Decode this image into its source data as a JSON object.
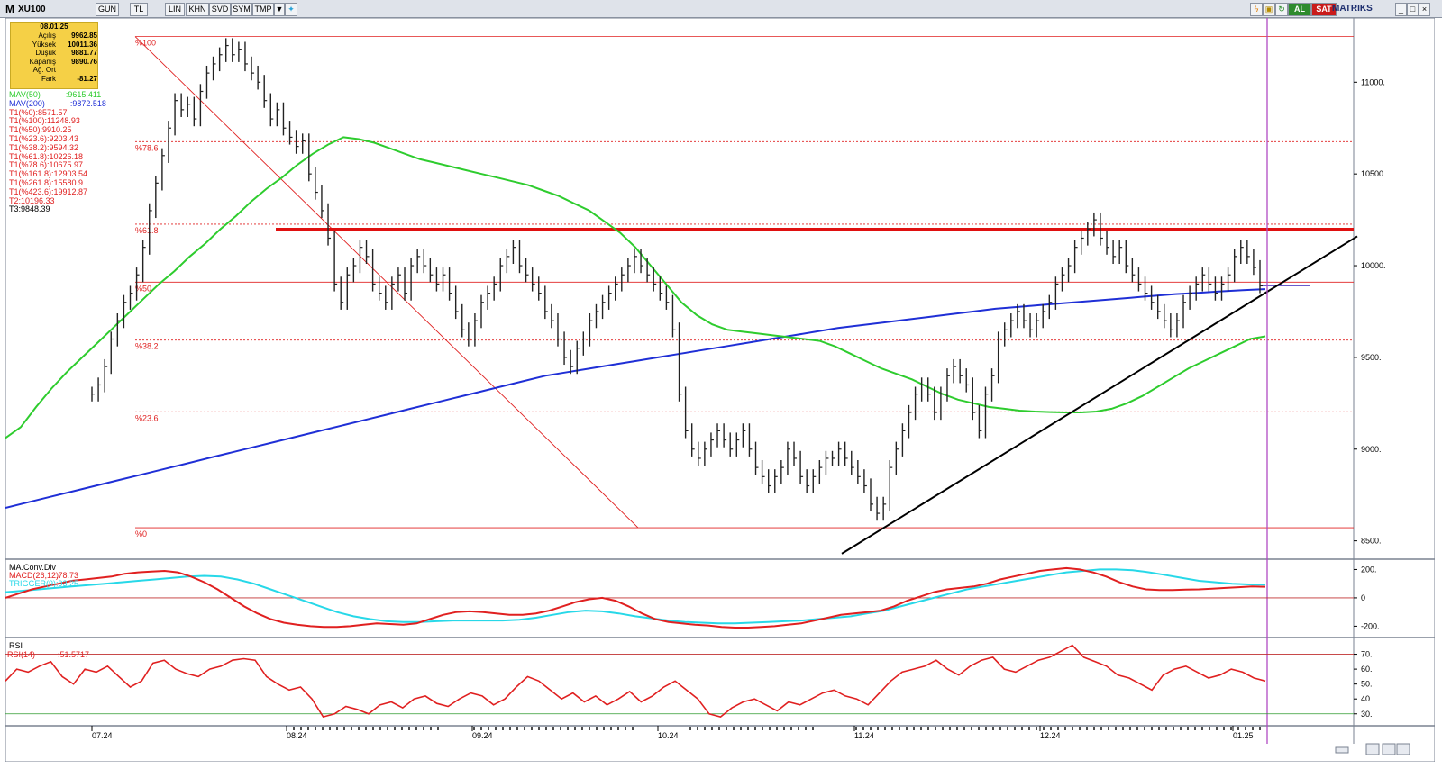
{
  "toolbar": {
    "logo": "M",
    "symbol": "XU100",
    "buttons": [
      "GUN",
      "TL",
      "LIN",
      "KHN",
      "SVD",
      "SYM",
      "TMP"
    ],
    "al_label": "AL",
    "sat_label": "SAT",
    "brand": "MATRIKS"
  },
  "info_box": {
    "date": "08.01.25",
    "rows": [
      {
        "label": "Açılış",
        "value": "9962.85"
      },
      {
        "label": "Yüksek",
        "value": "10011.36"
      },
      {
        "label": "Düşük",
        "value": "9881.77"
      },
      {
        "label": "Kapanış",
        "value": "9890.76"
      },
      {
        "label": "Ağ. Ort",
        "value": ""
      },
      {
        "label": "Fark",
        "value": "-81.27"
      }
    ]
  },
  "legend": [
    {
      "text": "MAV(50)",
      "value": ":9615.411",
      "color": "#2ecc2e"
    },
    {
      "text": "MAV(200)",
      "value": ":9872.518",
      "color": "#1f2fd6"
    },
    {
      "text": "T1(%0):8571.57",
      "value": "",
      "color": "#e02020"
    },
    {
      "text": "T1(%100):11248.93",
      "value": "",
      "color": "#e02020"
    },
    {
      "text": "T1(%50):9910.25",
      "value": "",
      "color": "#e02020"
    },
    {
      "text": "T1(%23.6):9203.43",
      "value": "",
      "color": "#e02020"
    },
    {
      "text": "T1(%38.2):9594.32",
      "value": "",
      "color": "#e02020"
    },
    {
      "text": "T1(%61.8):10226.18",
      "value": "",
      "color": "#e02020"
    },
    {
      "text": "T1(%78.6):10675.97",
      "value": "",
      "color": "#e02020"
    },
    {
      "text": "T1(%161.8):12903.54",
      "value": "",
      "color": "#e02020"
    },
    {
      "text": "T1(%261.8):15580.9",
      "value": "",
      "color": "#e02020"
    },
    {
      "text": "T1(%423.6):19912.87",
      "value": "",
      "color": "#e02020"
    },
    {
      "text": "T2:10196.33",
      "value": "",
      "color": "#e02020"
    },
    {
      "text": "T3:9848.39",
      "value": "",
      "color": "#000000"
    }
  ],
  "chart_data": [
    {
      "type": "ohlc",
      "x_labels": [
        "07.24",
        "08.24",
        "09.24",
        "10.24",
        "11.24",
        "12.24",
        "01.25"
      ],
      "ylim": [
        8400,
        11350
      ],
      "yticks": [
        8500,
        9000,
        9500,
        10000,
        10500,
        11000
      ],
      "ytick_labels": [
        "8500.",
        "9000.",
        "9500.",
        "10000.",
        "10500.",
        "11000."
      ],
      "fib_levels": [
        {
          "label": "%100",
          "value": 11248.93
        },
        {
          "label": "%78.6",
          "value": 10675.97
        },
        {
          "label": "%61.8",
          "value": 10226.18
        },
        {
          "label": "%50",
          "value": 9910.25
        },
        {
          "label": "%38.2",
          "value": 9594.32
        },
        {
          "label": "%23.6",
          "value": 9203.43
        },
        {
          "label": "%0",
          "value": 8571.57
        }
      ],
      "resistance_level": 10196.33,
      "support_level": 9890,
      "close_series": [
        9300,
        9350,
        9450,
        9600,
        9700,
        9800,
        9850,
        9950,
        10100,
        10300,
        10450,
        10600,
        10750,
        10900,
        10850,
        10880,
        10800,
        10950,
        11050,
        11100,
        11150,
        11200,
        11150,
        11180,
        11100,
        11050,
        11000,
        10900,
        10800,
        10850,
        10750,
        10700,
        10650,
        10680,
        10500,
        10400,
        10300,
        10150,
        9900,
        9800,
        9950,
        10000,
        10100,
        10050,
        9900,
        9850,
        9800,
        9900,
        9950,
        9850,
        10000,
        10050,
        10000,
        9950,
        9900,
        9950,
        9850,
        9750,
        9650,
        9600,
        9700,
        9800,
        9850,
        9900,
        10000,
        10050,
        10100,
        10000,
        9950,
        9900,
        9850,
        9750,
        9700,
        9600,
        9500,
        9450,
        9550,
        9600,
        9700,
        9750,
        9800,
        9850,
        9900,
        9950,
        10000,
        10050,
        10000,
        9950,
        9900,
        9850,
        9800,
        9650,
        9300,
        9100,
        9000,
        8950,
        9000,
        9050,
        9100,
        9050,
        9000,
        9050,
        9100,
        9000,
        8900,
        8850,
        8800,
        8850,
        8900,
        9000,
        8950,
        8850,
        8800,
        8850,
        8900,
        8950,
        8950,
        9000,
        8950,
        8900,
        8850,
        8800,
        8700,
        8650,
        8700,
        8900,
        9000,
        9100,
        9200,
        9300,
        9350,
        9300,
        9200,
        9300,
        9400,
        9450,
        9400,
        9350,
        9200,
        9100,
        9300,
        9400,
        9600,
        9650,
        9700,
        9750,
        9700,
        9650,
        9700,
        9750,
        9800,
        9900,
        9950,
        10000,
        10100,
        10150,
        10200,
        10250,
        10150,
        10100,
        10050,
        10100,
        10000,
        9950,
        9900,
        9850,
        9800,
        9750,
        9700,
        9650,
        9700,
        9800,
        9850,
        9900,
        9950,
        9900,
        9850,
        9900,
        9950,
        10050,
        10100,
        10050,
        9990,
        9890
      ],
      "mav50": [
        9060,
        9120,
        9230,
        9330,
        9420,
        9500,
        9580,
        9660,
        9740,
        9820,
        9900,
        9970,
        10050,
        10120,
        10200,
        10270,
        10350,
        10420,
        10480,
        10550,
        10610,
        10660,
        10700,
        10690,
        10670,
        10640,
        10610,
        10580,
        10560,
        10540,
        10520,
        10500,
        10480,
        10460,
        10440,
        10410,
        10380,
        10340,
        10300,
        10240,
        10180,
        10100,
        10000,
        9900,
        9800,
        9730,
        9680,
        9650,
        9640,
        9630,
        9620,
        9610,
        9600,
        9590,
        9560,
        9520,
        9480,
        9440,
        9410,
        9380,
        9340,
        9300,
        9270,
        9250,
        9230,
        9220,
        9210,
        9205,
        9202,
        9200,
        9200,
        9205,
        9220,
        9250,
        9290,
        9340,
        9390,
        9440,
        9480,
        9520,
        9560,
        9600,
        9615
      ],
      "mav200": [
        8680,
        8710,
        8740,
        8770,
        8800,
        8830,
        8860,
        8890,
        8920,
        8950,
        8980,
        9010,
        9040,
        9070,
        9100,
        9130,
        9160,
        9190,
        9220,
        9250,
        9280,
        9310,
        9340,
        9370,
        9400,
        9420,
        9440,
        9460,
        9480,
        9500,
        9520,
        9540,
        9560,
        9580,
        9600,
        9620,
        9640,
        9660,
        9675,
        9690,
        9705,
        9720,
        9735,
        9750,
        9765,
        9775,
        9785,
        9795,
        9805,
        9815,
        9825,
        9835,
        9845,
        9852,
        9860,
        9866,
        9872
      ],
      "trendline": {
        "start": [
          8430,
          "11.24"
        ],
        "end": [
          10160,
          "01.25"
        ]
      }
    },
    {
      "type": "line",
      "title": "MA.Conv.Div",
      "series": [
        {
          "name": "MACD(26,12)",
          "value_label": ":78.73",
          "color": "#e02020",
          "values": [
            0,
            30,
            60,
            80,
            100,
            120,
            130,
            140,
            150,
            170,
            180,
            185,
            190,
            180,
            150,
            110,
            60,
            0,
            -60,
            -110,
            -150,
            -175,
            -190,
            -200,
            -205,
            -205,
            -200,
            -190,
            -180,
            -185,
            -190,
            -180,
            -150,
            -120,
            -100,
            -95,
            -100,
            -110,
            -120,
            -120,
            -110,
            -90,
            -60,
            -30,
            -10,
            0,
            -20,
            -60,
            -110,
            -150,
            -170,
            -180,
            -190,
            -195,
            -205,
            -210,
            -210,
            -205,
            -200,
            -190,
            -180,
            -160,
            -140,
            -120,
            -110,
            -100,
            -90,
            -60,
            -20,
            10,
            40,
            60,
            70,
            80,
            100,
            130,
            150,
            170,
            190,
            200,
            210,
            200,
            180,
            150,
            110,
            80,
            60,
            55,
            55,
            58,
            60,
            65,
            70,
            75,
            80,
            78
          ]
        },
        {
          "name": "TRIGGER(9)",
          "value_label": ":93.25",
          "color": "#27d8e8",
          "values": [
            40,
            50,
            60,
            70,
            80,
            90,
            100,
            110,
            120,
            130,
            140,
            150,
            155,
            150,
            130,
            100,
            60,
            20,
            -20,
            -60,
            -100,
            -130,
            -150,
            -165,
            -170,
            -170,
            -165,
            -160,
            -160,
            -160,
            -160,
            -155,
            -140,
            -120,
            -100,
            -90,
            -95,
            -110,
            -130,
            -145,
            -160,
            -170,
            -175,
            -180,
            -180,
            -175,
            -170,
            -165,
            -160,
            -150,
            -140,
            -130,
            -110,
            -90,
            -60,
            -30,
            0,
            30,
            60,
            80,
            100,
            120,
            140,
            160,
            180,
            190,
            200,
            200,
            195,
            180,
            160,
            140,
            120,
            110,
            100,
            95,
            93
          ]
        }
      ],
      "ylim": [
        -280,
        260
      ],
      "yticks": [
        200,
        0,
        -200
      ],
      "ytick_labels": [
        "200.",
        "0",
        "-200."
      ]
    },
    {
      "type": "line",
      "title": "RSI",
      "series": [
        {
          "name": "RSI(14)",
          "value_label": ":51.5717",
          "color": "#e02020",
          "values": [
            52,
            60,
            58,
            62,
            65,
            55,
            50,
            60,
            58,
            62,
            55,
            48,
            52,
            64,
            66,
            60,
            57,
            55,
            60,
            62,
            66,
            67,
            66,
            55,
            50,
            46,
            48,
            40,
            28,
            30,
            35,
            33,
            30,
            36,
            38,
            34,
            40,
            42,
            37,
            35,
            40,
            44,
            42,
            36,
            40,
            48,
            55,
            52,
            46,
            40,
            44,
            38,
            42,
            36,
            40,
            45,
            38,
            42,
            48,
            52,
            46,
            40,
            30,
            28,
            34,
            38,
            40,
            36,
            32,
            38,
            36,
            40,
            44,
            46,
            42,
            40,
            36,
            44,
            52,
            58,
            60,
            62,
            66,
            60,
            56,
            62,
            66,
            68,
            60,
            58,
            62,
            66,
            68,
            72,
            76,
            68,
            65,
            62,
            56,
            54,
            50,
            46,
            56,
            60,
            62,
            58,
            54,
            56,
            60,
            58,
            54,
            52
          ]
        }
      ],
      "ylim": [
        22,
        80
      ],
      "yticks": [
        70,
        60,
        50,
        40,
        30
      ],
      "ytick_labels": [
        "70.",
        "60.",
        "50.",
        "40.",
        "30."
      ],
      "ref_lines": [
        70,
        30
      ]
    }
  ]
}
